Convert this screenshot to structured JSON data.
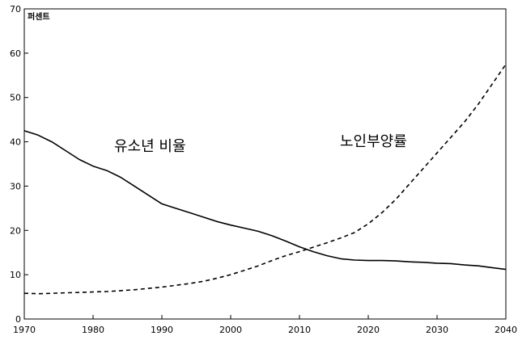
{
  "chart_data": {
    "type": "line",
    "title": "",
    "xlabel": "",
    "ylabel": "",
    "unit_label": "퍼센트",
    "xlim": [
      1970,
      2040
    ],
    "ylim": [
      0,
      70
    ],
    "x_ticks": [
      "1970",
      "1980",
      "1990",
      "2000",
      "2010",
      "2020",
      "2030",
      "2040"
    ],
    "y_ticks": [
      "0",
      "10",
      "20",
      "30",
      "40",
      "50",
      "60",
      "70"
    ],
    "grid": false,
    "legend": "none",
    "series": [
      {
        "name": "유소년 비율",
        "line_style": "solid",
        "color": "#000000",
        "points": [
          [
            1970,
            42.5
          ],
          [
            1972,
            41.5
          ],
          [
            1974,
            40.0
          ],
          [
            1976,
            38.0
          ],
          [
            1978,
            36.0
          ],
          [
            1980,
            34.5
          ],
          [
            1982,
            33.5
          ],
          [
            1984,
            32.0
          ],
          [
            1986,
            30.0
          ],
          [
            1988,
            28.0
          ],
          [
            1990,
            26.0
          ],
          [
            1992,
            25.0
          ],
          [
            1994,
            24.0
          ],
          [
            1996,
            23.0
          ],
          [
            1998,
            22.0
          ],
          [
            2000,
            21.2
          ],
          [
            2002,
            20.5
          ],
          [
            2004,
            19.8
          ],
          [
            2006,
            18.8
          ],
          [
            2008,
            17.6
          ],
          [
            2010,
            16.3
          ],
          [
            2012,
            15.2
          ],
          [
            2014,
            14.3
          ],
          [
            2016,
            13.6
          ],
          [
            2018,
            13.3
          ],
          [
            2020,
            13.2
          ],
          [
            2022,
            13.2
          ],
          [
            2024,
            13.1
          ],
          [
            2026,
            12.9
          ],
          [
            2028,
            12.8
          ],
          [
            2030,
            12.6
          ],
          [
            2032,
            12.5
          ],
          [
            2034,
            12.2
          ],
          [
            2036,
            12.0
          ],
          [
            2038,
            11.6
          ],
          [
            2040,
            11.2
          ]
        ]
      },
      {
        "name": "노인부양률",
        "line_style": "dashed",
        "color": "#000000",
        "points": [
          [
            1970,
            5.8
          ],
          [
            1972,
            5.7
          ],
          [
            1974,
            5.8
          ],
          [
            1976,
            5.9
          ],
          [
            1978,
            6.0
          ],
          [
            1980,
            6.1
          ],
          [
            1982,
            6.2
          ],
          [
            1984,
            6.4
          ],
          [
            1986,
            6.6
          ],
          [
            1988,
            6.9
          ],
          [
            1990,
            7.2
          ],
          [
            1992,
            7.6
          ],
          [
            1994,
            8.0
          ],
          [
            1996,
            8.5
          ],
          [
            1998,
            9.2
          ],
          [
            2000,
            10.0
          ],
          [
            2002,
            11.0
          ],
          [
            2004,
            12.0
          ],
          [
            2006,
            13.2
          ],
          [
            2008,
            14.3
          ],
          [
            2010,
            15.2
          ],
          [
            2012,
            16.2
          ],
          [
            2014,
            17.2
          ],
          [
            2016,
            18.3
          ],
          [
            2018,
            19.5
          ],
          [
            2020,
            21.5
          ],
          [
            2022,
            24.0
          ],
          [
            2024,
            27.0
          ],
          [
            2026,
            30.5
          ],
          [
            2028,
            34.0
          ],
          [
            2030,
            37.5
          ],
          [
            2032,
            41.0
          ],
          [
            2034,
            44.5
          ],
          [
            2036,
            48.5
          ],
          [
            2038,
            53.0
          ],
          [
            2040,
            57.5
          ]
        ]
      }
    ]
  }
}
